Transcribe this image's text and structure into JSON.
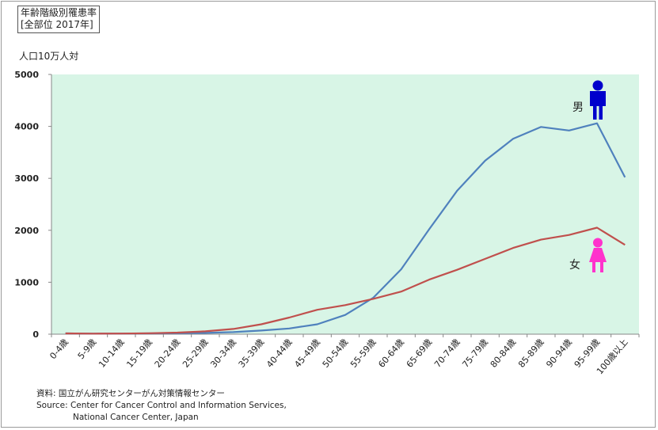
{
  "title_lines": [
    "年齢階級別罹患率",
    "[全部位 2017年]"
  ],
  "source_lines": [
    "資料:  国立がん研究センターがん対策情報センター",
    "Source: Center for Cancer Control and Information Services,",
    "National Cancer Center, Japan"
  ],
  "colors": {
    "plot_background": "#d8f5e6",
    "male": "#4f81bd",
    "female": "#c0504d",
    "male_icon": "#0000cc",
    "female_icon": "#ff33cc"
  },
  "icons": {
    "male": "male-person-icon",
    "female": "female-person-icon"
  },
  "chart_data": {
    "type": "line",
    "title": "年齢階級別罹患率 [全部位 2017年]",
    "ylabel": "人口10万人対",
    "xlabel": "",
    "ylim": [
      0,
      5000
    ],
    "yticks": [
      0,
      1000,
      2000,
      3000,
      4000,
      5000
    ],
    "grid": false,
    "categories": [
      "0-4歳",
      "5-9歳",
      "10-14歳",
      "15-19歳",
      "20-24歳",
      "25-29歳",
      "30-34歳",
      "35-39歳",
      "40-44歳",
      "45-49歳",
      "50-54歳",
      "55-59歳",
      "60-64歳",
      "65-69歳",
      "70-74歳",
      "75-79歳",
      "80-84歳",
      "85-89歳",
      "90-94歳",
      "95-99歳",
      "100歳以上"
    ],
    "series": [
      {
        "name": "男",
        "values": [
          15,
          10,
          12,
          15,
          18,
          25,
          40,
          70,
          110,
          190,
          370,
          700,
          1250,
          2020,
          2760,
          3340,
          3760,
          3990,
          3920,
          4060,
          3020
        ]
      },
      {
        "name": "女",
        "values": [
          15,
          10,
          12,
          18,
          30,
          55,
          100,
          190,
          320,
          470,
          560,
          680,
          820,
          1050,
          1240,
          1450,
          1660,
          1820,
          1910,
          2050,
          1720
        ]
      }
    ]
  }
}
